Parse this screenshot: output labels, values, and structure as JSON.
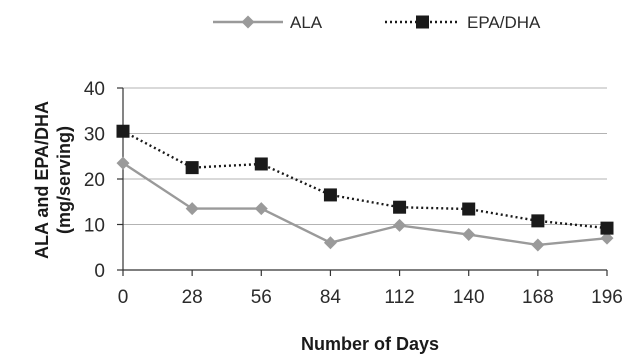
{
  "chart_data": {
    "type": "line",
    "title": "",
    "xlabel": "Number of Days",
    "ylabel": [
      "ALA and EPA/DHA",
      "(mg/serving)"
    ],
    "x": [
      0,
      28,
      56,
      84,
      112,
      140,
      168,
      196
    ],
    "x_tick_labels": [
      "0",
      "28",
      "56",
      "84",
      "112",
      "140",
      "168",
      "196"
    ],
    "ylim": [
      0,
      40
    ],
    "y_ticks": [
      0,
      10,
      20,
      30,
      40
    ],
    "y_tick_labels": [
      "0",
      "10",
      "20",
      "30",
      "40"
    ],
    "grid": "horizontal",
    "legend_position": "top",
    "series": [
      {
        "name": "ALA",
        "values": [
          23.5,
          13.5,
          13.5,
          6,
          9.8,
          7.8,
          5.5,
          7
        ],
        "color": "#9a9a9a",
        "marker": "diamond",
        "line_style": "solid"
      },
      {
        "name": "EPA/DHA",
        "values": [
          30.5,
          22.5,
          23.3,
          16.5,
          13.8,
          13.4,
          10.8,
          9.2
        ],
        "color": "#1a1a1a",
        "marker": "square",
        "line_style": "dotted"
      }
    ]
  }
}
